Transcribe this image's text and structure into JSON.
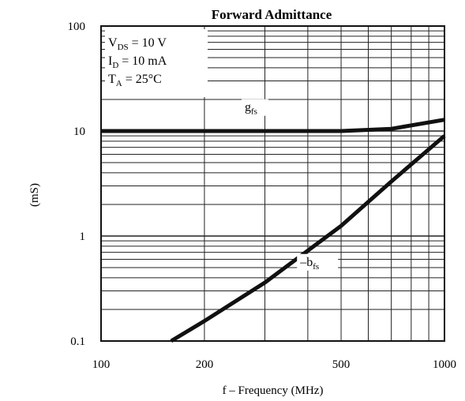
{
  "chart_data": {
    "type": "line",
    "title": "Forward Admittance",
    "xlabel": "f – Frequency (MHz)",
    "ylabel": "(mS)",
    "x_scale": "log",
    "y_scale": "log",
    "xlim": [
      100,
      1000
    ],
    "ylim": [
      0.1,
      100
    ],
    "x_ticks": [
      "100",
      "200",
      "500",
      "1000"
    ],
    "y_ticks": [
      "100",
      "10",
      "1",
      "0.1"
    ],
    "grid": true,
    "conditions": [
      "V_DS = 10 V",
      "I_D = 10 mA",
      "T_A = 25°C"
    ],
    "condition_parts": [
      {
        "main": "V",
        "sub": "DS",
        "rest": " = 10 V"
      },
      {
        "main": "I",
        "sub": "D",
        "rest": " = 10 mA"
      },
      {
        "main": "T",
        "sub": "A",
        "rest": " = 25°C"
      }
    ],
    "series": [
      {
        "name": "g_fs",
        "label_main": "g",
        "label_sub": "fs",
        "x": [
          100,
          200,
          500,
          700,
          1000
        ],
        "y": [
          10,
          10,
          10,
          10.5,
          12.8
        ]
      },
      {
        "name": "-b_fs",
        "label_main": "–b",
        "label_sub": "fs",
        "x": [
          160,
          200,
          300,
          500,
          700,
          1000
        ],
        "y": [
          0.1,
          0.155,
          0.36,
          1.25,
          3.3,
          9.0
        ]
      }
    ]
  }
}
